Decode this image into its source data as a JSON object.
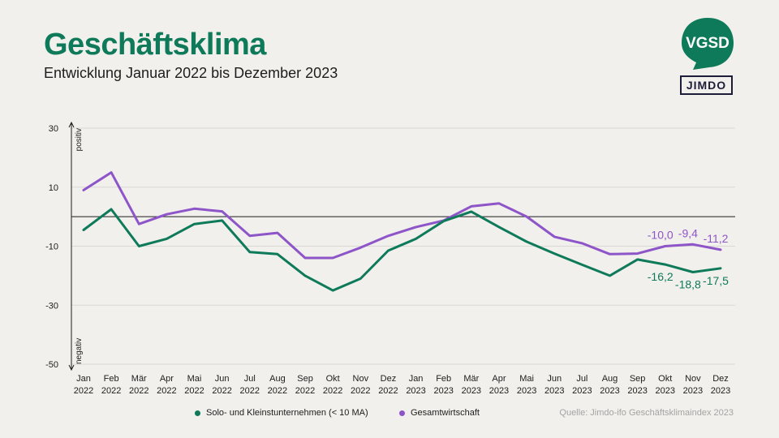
{
  "header": {
    "title": "Geschäftsklima",
    "subtitle": "Entwicklung Januar 2022 bis Dezember 2023"
  },
  "logos": {
    "vgsd_text": "VGSD",
    "jimdo_text": "JIMDO"
  },
  "source": "Quelle: Jimdo-ifo Geschäftsklimaindex 2023",
  "chart_data": {
    "type": "line",
    "ylim": [
      -50,
      30
    ],
    "yticks": [
      30,
      10,
      -10,
      -30,
      -50
    ],
    "y_axis_top_label": "positiv",
    "y_axis_bottom_label": "negativ",
    "zero_line": true,
    "grid": true,
    "legend_position": "bottom",
    "categories": [
      [
        "Jan",
        "2022"
      ],
      [
        "Feb",
        "2022"
      ],
      [
        "Mär",
        "2022"
      ],
      [
        "Apr",
        "2022"
      ],
      [
        "Mai",
        "2022"
      ],
      [
        "Jun",
        "2022"
      ],
      [
        "Jul",
        "2022"
      ],
      [
        "Aug",
        "2022"
      ],
      [
        "Sep",
        "2022"
      ],
      [
        "Okt",
        "2022"
      ],
      [
        "Nov",
        "2022"
      ],
      [
        "Dez",
        "2022"
      ],
      [
        "Jan",
        "2023"
      ],
      [
        "Feb",
        "2023"
      ],
      [
        "Mär",
        "2023"
      ],
      [
        "Apr",
        "2023"
      ],
      [
        "Mai",
        "2023"
      ],
      [
        "Jun",
        "2023"
      ],
      [
        "Jul",
        "2023"
      ],
      [
        "Aug",
        "2023"
      ],
      [
        "Sep",
        "2023"
      ],
      [
        "Okt",
        "2023"
      ],
      [
        "Nov",
        "2023"
      ],
      [
        "Dez",
        "2023"
      ]
    ],
    "series": [
      {
        "name": "Solo- und Kleinstunternehmen (< 10 MA)",
        "color": "#0e7a5a",
        "values": [
          -4.5,
          2.5,
          -10,
          -7.5,
          -2.5,
          -1.3,
          -12,
          -12.7,
          -20,
          -25,
          -21,
          -11.5,
          -7.5,
          -1.5,
          1.7,
          -3.5,
          -8.5,
          -12.5,
          -16.3,
          -20,
          -14.5,
          -16.2,
          -18.8,
          -17.5
        ],
        "labels": [
          {
            "index": 21,
            "text": "-16,2"
          },
          {
            "index": 22,
            "text": "-18,8"
          },
          {
            "index": 23,
            "text": "-17,5"
          }
        ]
      },
      {
        "name": "Gesamtwirtschaft",
        "color": "#8e55c9",
        "values": [
          9,
          15,
          -2.5,
          0.8,
          2.7,
          1.8,
          -6.5,
          -5.5,
          -14,
          -14,
          -10.5,
          -6.5,
          -3.5,
          -1.3,
          3.5,
          4.5,
          0,
          -6.8,
          -9,
          -12.7,
          -12.5,
          -10,
          -9.4,
          -11.2
        ],
        "labels": [
          {
            "index": 21,
            "text": "-10,0"
          },
          {
            "index": 22,
            "text": "-9,4"
          },
          {
            "index": 23,
            "text": "-11,2"
          }
        ]
      }
    ]
  }
}
